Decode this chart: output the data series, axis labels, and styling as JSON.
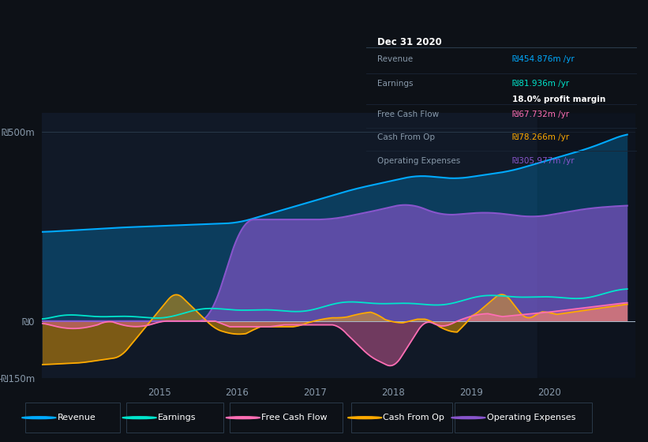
{
  "background_color": "#0d1117",
  "plot_bg_color": "#111927",
  "colors": {
    "revenue": "#00aaff",
    "earnings": "#00e5cc",
    "free_cash_flow": "#ff6eb4",
    "cash_from_op": "#ffaa00",
    "operating_expenses": "#8855cc"
  },
  "tooltip": {
    "date": "Dec 31 2020",
    "revenue_val": "₪454.876m /yr",
    "earnings_val": "₪81.936m /yr",
    "profit_margin": "18.0% profit margin",
    "fcf_val": "₪67.732m /yr",
    "cash_op_val": "₪78.266m /yr",
    "op_exp_val": "₪305.977m /yr"
  },
  "legend": [
    "Revenue",
    "Earnings",
    "Free Cash Flow",
    "Cash From Op",
    "Operating Expenses"
  ]
}
